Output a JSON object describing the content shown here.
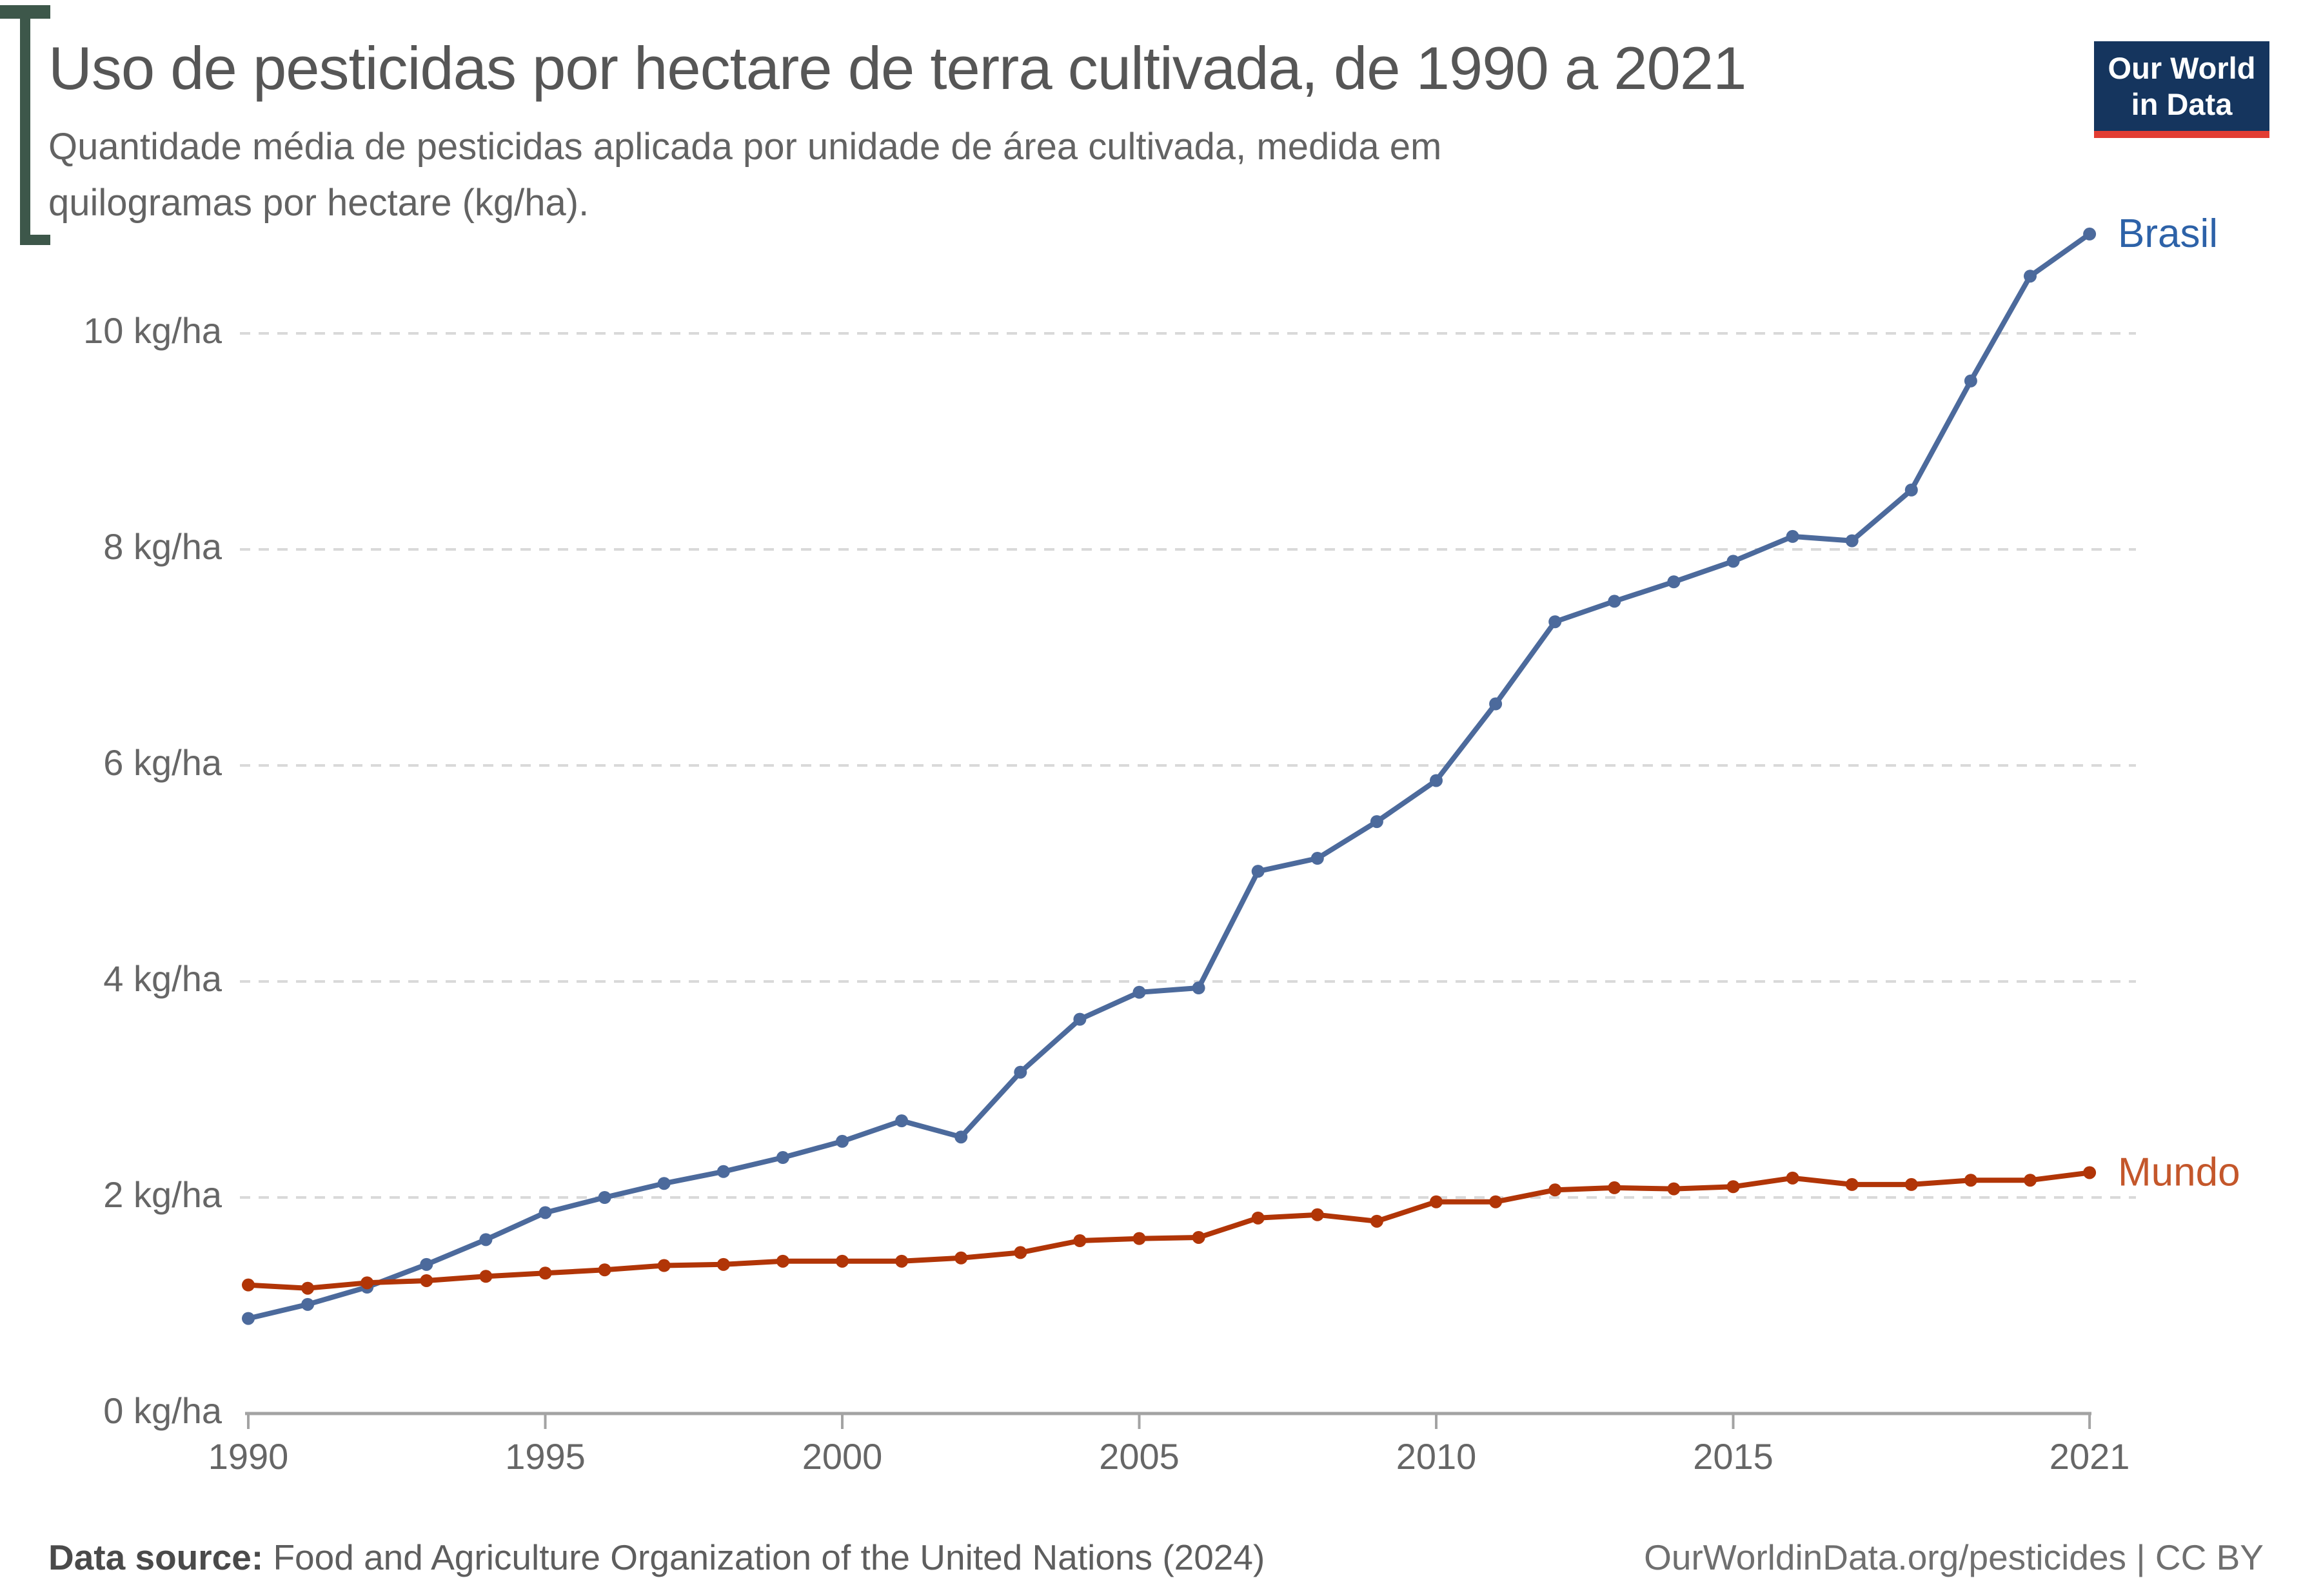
{
  "header": {
    "title": "Uso de pesticidas por hectare de terra cultivada, de 1990 a 2021",
    "subtitle_lines": [
      "Quantidade média de pesticidas aplicada por unidade de área cultivada, medida em",
      "quilogramas por hectare (kg/ha).",
      ""
    ],
    "logo": {
      "line1": "Our World",
      "line2": "in Data",
      "bg_color": "#15355e",
      "stripe_color": "#e23d33"
    },
    "accent_color": "#3d574a"
  },
  "chart_data": {
    "type": "line",
    "x": [
      1990,
      1991,
      1992,
      1993,
      1994,
      1995,
      1996,
      1997,
      1998,
      1999,
      2000,
      2001,
      2002,
      2003,
      2004,
      2005,
      2006,
      2007,
      2008,
      2009,
      2010,
      2011,
      2012,
      2013,
      2014,
      2015,
      2016,
      2017,
      2018,
      2019,
      2020,
      2021
    ],
    "series": [
      {
        "name": "Brasil",
        "color": "#4c6a9c",
        "label_color": "#2d62a8",
        "values": [
          0.88,
          1.01,
          1.17,
          1.38,
          1.61,
          1.86,
          2.0,
          2.13,
          2.24,
          2.37,
          2.52,
          2.71,
          2.56,
          3.16,
          3.65,
          3.9,
          3.94,
          5.02,
          5.14,
          5.48,
          5.86,
          6.57,
          7.33,
          7.52,
          7.7,
          7.89,
          8.12,
          8.08,
          8.55,
          9.56,
          10.53,
          10.92
        ]
      },
      {
        "name": "Mundo",
        "color": "#b13507",
        "label_color": "#c4572b",
        "values": [
          1.19,
          1.16,
          1.21,
          1.23,
          1.27,
          1.3,
          1.33,
          1.37,
          1.38,
          1.41,
          1.41,
          1.41,
          1.44,
          1.49,
          1.6,
          1.62,
          1.63,
          1.81,
          1.84,
          1.78,
          1.96,
          1.96,
          2.07,
          2.09,
          2.08,
          2.1,
          2.18,
          2.12,
          2.12,
          2.16,
          2.16,
          2.23
        ]
      }
    ],
    "xticks": [
      1990,
      1995,
      2000,
      2005,
      2010,
      2015,
      2021
    ],
    "yticks": [
      0,
      2,
      4,
      6,
      8,
      10
    ],
    "ytick_suffix": " kg/ha",
    "ylim": [
      0,
      11.2
    ],
    "grid": "horizontal-dashed",
    "legend_position": "end-of-line-labels"
  },
  "footer": {
    "source_label": "Data source:",
    "source_text": " Food and Agriculture Organization of the United Nations (2024)",
    "credit": "OurWorldinData.org/pesticides | CC BY"
  }
}
